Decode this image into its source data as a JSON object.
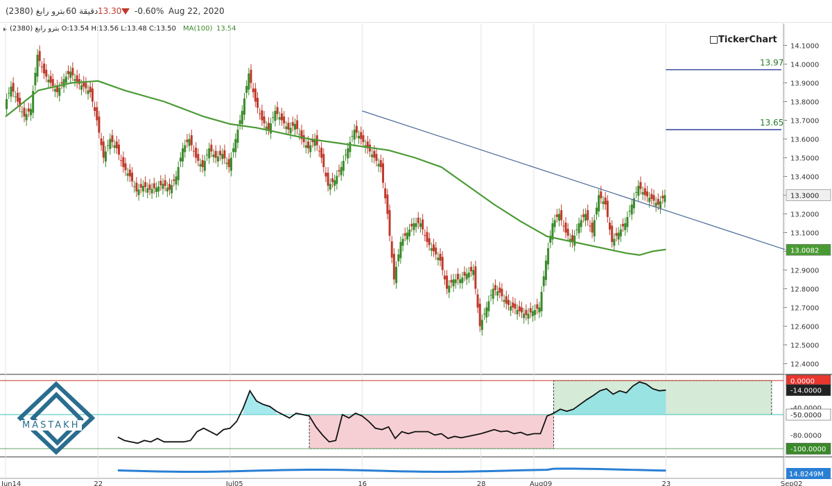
{
  "header": {
    "symbol": "(2380) بترو رابغ",
    "interval": "60 دقيقة",
    "last_price": "13.30",
    "change_pct": "-0.60%",
    "date": "Aug 22, 2020",
    "change_direction": "down"
  },
  "ohlc_bar": {
    "text": "بترو رابغ (2380) O:13.54 H:13.56 L:13.48 C:13.50",
    "ma_label": "MA(100)",
    "ma_value": "13.54"
  },
  "brand": "TickerChart",
  "watermark": "MASTAKH",
  "colors": {
    "up_candle": "#3a8a2a",
    "down_candle": "#c0392b",
    "ma": "#4a9a34",
    "trendline": "#4a6a9a",
    "levels": "#2c3e9a",
    "oscillator": "#111111",
    "volume": "#2a7fd4"
  },
  "chart_data": [
    {
      "type": "candlestick",
      "title": "(2380) بترو رابغ",
      "y_range": [
        12.35,
        14.15
      ],
      "y_ticks": [
        "14.1000",
        "14.0000",
        "13.9000",
        "13.8000",
        "13.7000",
        "13.6000",
        "13.5000",
        "13.4000",
        "13.3000",
        "13.2000",
        "13.1000",
        "13.0000",
        "12.9000",
        "12.8000",
        "12.7000",
        "12.6000",
        "12.5000",
        "12.4000"
      ],
      "x_ticks": [
        {
          "label": "Jun14",
          "x": 0
        },
        {
          "label": "22",
          "x": 14
        },
        {
          "label": "Jul05",
          "x": 34
        },
        {
          "label": "16",
          "x": 54
        },
        {
          "label": "28",
          "x": 72
        },
        {
          "label": "Aug09",
          "x": 80
        },
        {
          "label": "23",
          "x": 100
        },
        {
          "label": "Sep02",
          "x": 118
        }
      ],
      "x_range": [
        0,
        122
      ],
      "close_path": [
        [
          0,
          13.78
        ],
        [
          1,
          13.88
        ],
        [
          2,
          13.8
        ],
        [
          3,
          13.72
        ],
        [
          4,
          13.76
        ],
        [
          5,
          14.05
        ],
        [
          6,
          13.95
        ],
        [
          7,
          13.9
        ],
        [
          8,
          13.85
        ],
        [
          9,
          13.92
        ],
        [
          10,
          13.96
        ],
        [
          11,
          13.9
        ],
        [
          12,
          13.88
        ],
        [
          13,
          13.85
        ],
        [
          14,
          13.7
        ],
        [
          15,
          13.5
        ],
        [
          16,
          13.6
        ],
        [
          17,
          13.55
        ],
        [
          18,
          13.45
        ],
        [
          19,
          13.4
        ],
        [
          20,
          13.32
        ],
        [
          21,
          13.35
        ],
        [
          22,
          13.33
        ],
        [
          23,
          13.34
        ],
        [
          24,
          13.36
        ],
        [
          25,
          13.33
        ],
        [
          26,
          13.4
        ],
        [
          27,
          13.55
        ],
        [
          28,
          13.6
        ],
        [
          29,
          13.5
        ],
        [
          30,
          13.45
        ],
        [
          31,
          13.55
        ],
        [
          32,
          13.5
        ],
        [
          33,
          13.52
        ],
        [
          34,
          13.45
        ],
        [
          35,
          13.6
        ],
        [
          36,
          13.75
        ],
        [
          37,
          13.95
        ],
        [
          38,
          13.8
        ],
        [
          39,
          13.7
        ],
        [
          40,
          13.65
        ],
        [
          41,
          13.75
        ],
        [
          42,
          13.7
        ],
        [
          43,
          13.65
        ],
        [
          44,
          13.68
        ],
        [
          45,
          13.6
        ],
        [
          46,
          13.55
        ],
        [
          47,
          13.6
        ],
        [
          48,
          13.5
        ],
        [
          49,
          13.35
        ],
        [
          50,
          13.38
        ],
        [
          51,
          13.45
        ],
        [
          52,
          13.55
        ],
        [
          53,
          13.65
        ],
        [
          54,
          13.6
        ],
        [
          55,
          13.55
        ],
        [
          56,
          13.5
        ],
        [
          57,
          13.45
        ],
        [
          58,
          13.2
        ],
        [
          59,
          12.85
        ],
        [
          60,
          13.05
        ],
        [
          61,
          13.1
        ],
        [
          62,
          13.15
        ],
        [
          63,
          13.15
        ],
        [
          64,
          13.05
        ],
        [
          65,
          13.0
        ],
        [
          66,
          12.95
        ],
        [
          67,
          12.8
        ],
        [
          68,
          12.85
        ],
        [
          69,
          12.85
        ],
        [
          70,
          12.88
        ],
        [
          71,
          12.9
        ],
        [
          72,
          12.6
        ],
        [
          73,
          12.7
        ],
        [
          74,
          12.8
        ],
        [
          75,
          12.78
        ],
        [
          76,
          12.72
        ],
        [
          77,
          12.7
        ],
        [
          78,
          12.68
        ],
        [
          79,
          12.66
        ],
        [
          80,
          12.68
        ],
        [
          81,
          12.7
        ],
        [
          82,
          12.95
        ],
        [
          83,
          13.15
        ],
        [
          84,
          13.2
        ],
        [
          85,
          13.1
        ],
        [
          86,
          13.05
        ],
        [
          87,
          13.15
        ],
        [
          88,
          13.2
        ],
        [
          89,
          13.1
        ],
        [
          90,
          13.3
        ],
        [
          91,
          13.25
        ],
        [
          92,
          13.05
        ],
        [
          93,
          13.1
        ],
        [
          94,
          13.15
        ],
        [
          95,
          13.25
        ],
        [
          96,
          13.35
        ],
        [
          97,
          13.3
        ],
        [
          98,
          13.28
        ],
        [
          99,
          13.25
        ],
        [
          100,
          13.3
        ]
      ],
      "series": [
        {
          "name": "MA(100)",
          "values": [
            [
              0,
              13.72
            ],
            [
              5,
              13.86
            ],
            [
              10,
              13.9
            ],
            [
              14,
              13.91
            ],
            [
              18,
              13.86
            ],
            [
              24,
              13.8
            ],
            [
              30,
              13.72
            ],
            [
              34,
              13.68
            ],
            [
              38,
              13.66
            ],
            [
              42,
              13.63
            ],
            [
              46,
              13.6
            ],
            [
              50,
              13.58
            ],
            [
              54,
              13.56
            ],
            [
              58,
              13.54
            ],
            [
              62,
              13.5
            ],
            [
              66,
              13.45
            ],
            [
              70,
              13.35
            ],
            [
              74,
              13.25
            ],
            [
              78,
              13.16
            ],
            [
              82,
              13.08
            ],
            [
              86,
              13.05
            ],
            [
              90,
              13.02
            ],
            [
              94,
              12.99
            ],
            [
              96,
              12.98
            ],
            [
              98,
              13.0
            ],
            [
              100,
              13.01
            ]
          ]
        }
      ],
      "trendline": {
        "from": [
          54,
          13.75
        ],
        "to": [
          118,
          13.01
        ]
      },
      "levels": [
        {
          "value": 13.97,
          "label": "13.97",
          "x_start": 100,
          "x_end": 122
        },
        {
          "value": 13.65,
          "label": "13.65",
          "x_start": 100,
          "x_end": 122
        }
      ],
      "price_labels": [
        {
          "value": 13.3,
          "label": "13.3000",
          "style": "last"
        },
        {
          "value": 13.008,
          "label": "13.0082",
          "style": "ma"
        }
      ]
    },
    {
      "type": "line",
      "title": "oscillator",
      "y_range": [
        -108,
        4
      ],
      "x_range": [
        0,
        122
      ],
      "y_ticks": [
        "-40.0000",
        "-80.0000"
      ],
      "price_labels": [
        {
          "value": 0,
          "label": "0.0000",
          "style": "red"
        },
        {
          "value": -14,
          "label": "-14.0000",
          "style": "dark"
        },
        {
          "value": -50,
          "label": "-50.0000",
          "style": "outline"
        },
        {
          "value": -100,
          "label": "-100.0000",
          "style": "green"
        }
      ],
      "reference_lines": [
        0,
        -50,
        -100
      ],
      "series": [
        {
          "name": "",
          "values": [
            [
              17,
              -83
            ],
            [
              18,
              -88
            ],
            [
              19,
              -90
            ],
            [
              20,
              -92
            ],
            [
              21,
              -88
            ],
            [
              22,
              -90
            ],
            [
              23,
              -85
            ],
            [
              24,
              -90
            ],
            [
              25,
              -90
            ],
            [
              26,
              -90
            ],
            [
              27,
              -90
            ],
            [
              28,
              -88
            ],
            [
              29,
              -75
            ],
            [
              30,
              -70
            ],
            [
              31,
              -75
            ],
            [
              32,
              -80
            ],
            [
              33,
              -72
            ],
            [
              34,
              -70
            ],
            [
              35,
              -60
            ],
            [
              36,
              -40
            ],
            [
              37,
              -15
            ],
            [
              38,
              -30
            ],
            [
              39,
              -35
            ],
            [
              40,
              -38
            ],
            [
              41,
              -45
            ],
            [
              42,
              -50
            ],
            [
              43,
              -55
            ],
            [
              44,
              -48
            ],
            [
              45,
              -50
            ],
            [
              46,
              -52
            ],
            [
              47,
              -68
            ],
            [
              48,
              -80
            ],
            [
              49,
              -90
            ],
            [
              50,
              -88
            ],
            [
              51,
              -50
            ],
            [
              52,
              -55
            ],
            [
              53,
              -48
            ],
            [
              54,
              -52
            ],
            [
              55,
              -60
            ],
            [
              56,
              -70
            ],
            [
              57,
              -72
            ],
            [
              58,
              -68
            ],
            [
              59,
              -85
            ],
            [
              60,
              -75
            ],
            [
              61,
              -78
            ],
            [
              62,
              -75
            ],
            [
              63,
              -75
            ],
            [
              64,
              -75
            ],
            [
              65,
              -80
            ],
            [
              66,
              -78
            ],
            [
              67,
              -85
            ],
            [
              68,
              -82
            ],
            [
              69,
              -84
            ],
            [
              70,
              -82
            ],
            [
              71,
              -80
            ],
            [
              72,
              -78
            ],
            [
              73,
              -75
            ],
            [
              74,
              -72
            ],
            [
              75,
              -75
            ],
            [
              76,
              -74
            ],
            [
              77,
              -78
            ],
            [
              78,
              -76
            ],
            [
              79,
              -80
            ],
            [
              80,
              -78
            ],
            [
              81,
              -78
            ],
            [
              82,
              -52
            ],
            [
              83,
              -48
            ],
            [
              84,
              -42
            ],
            [
              85,
              -45
            ],
            [
              86,
              -42
            ],
            [
              87,
              -35
            ],
            [
              88,
              -28
            ],
            [
              89,
              -22
            ],
            [
              90,
              -15
            ],
            [
              91,
              -12
            ],
            [
              92,
              -20
            ],
            [
              93,
              -15
            ],
            [
              94,
              -18
            ],
            [
              95,
              -8
            ],
            [
              96,
              -2
            ],
            [
              97,
              -5
            ],
            [
              98,
              -12
            ],
            [
              99,
              -15
            ],
            [
              100,
              -14
            ]
          ]
        }
      ],
      "boxes": [
        {
          "x": [
            46,
            83
          ],
          "y": [
            -50,
            -100
          ],
          "fill": "#f6cfd4"
        },
        {
          "x": [
            83,
            116
          ],
          "y": [
            0,
            -50
          ],
          "fill": "#d5ebd7"
        }
      ]
    },
    {
      "type": "area",
      "title": "volume",
      "price_labels": [
        {
          "label": "14.8249M",
          "style": "blue"
        }
      ]
    }
  ]
}
